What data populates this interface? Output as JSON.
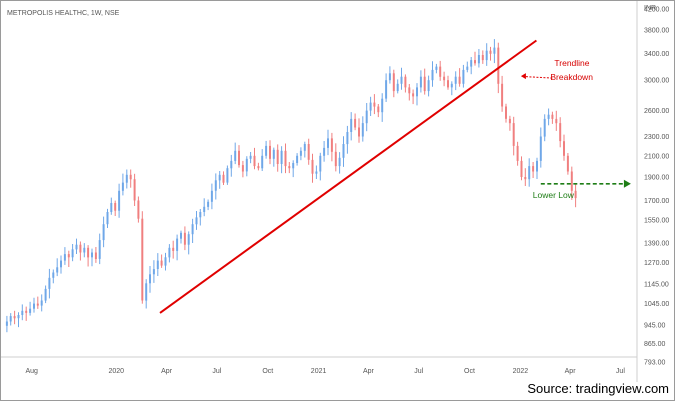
{
  "chart_data": {
    "type": "candlestick",
    "title": "METROPOLIS HEALTHC, 1W, NSE",
    "currency": "INR",
    "y_scale": "log",
    "ylim": [
      793,
      4200
    ],
    "y_ticks": [
      "4200.00",
      "3800.00",
      "3400.00",
      "3000.00",
      "2600.00",
      "2300.00",
      "2100.00",
      "1900.00",
      "1700.00",
      "1550.00",
      "1390.00",
      "1270.00",
      "1145.00",
      "1045.00",
      "945.00",
      "865.00",
      "793.00"
    ],
    "x_ticks": [
      {
        "label": "Aug",
        "date": "2019-08-01"
      },
      {
        "label": "2020",
        "date": "2020-01-01"
      },
      {
        "label": "Apr",
        "date": "2020-04-01"
      },
      {
        "label": "Jul",
        "date": "2020-07-01"
      },
      {
        "label": "Oct",
        "date": "2020-10-01"
      },
      {
        "label": "2021",
        "date": "2021-01-01"
      },
      {
        "label": "Apr",
        "date": "2021-04-01"
      },
      {
        "label": "Jul",
        "date": "2021-07-01"
      },
      {
        "label": "Oct",
        "date": "2021-10-01"
      },
      {
        "label": "2022",
        "date": "2022-01-01"
      },
      {
        "label": "Apr",
        "date": "2022-04-01"
      },
      {
        "label": "Jul",
        "date": "2022-07-01"
      }
    ],
    "x_range": [
      "2019-06-10",
      "2022-07-31"
    ],
    "up_color": "#6fa7e8",
    "down_color": "#f07f7f",
    "trendline": {
      "color": "#e00000",
      "start": {
        "date": "2020-03-20",
        "value": 1000
      },
      "end": {
        "date": "2022-01-30",
        "value": 3620
      }
    },
    "breakdown_arrow": {
      "from": {
        "date": "2022-02-28",
        "value": 3030
      },
      "to": {
        "date": "2022-01-02",
        "value": 3060
      }
    },
    "lower_low_arrow": {
      "color": "#1e7d16",
      "from": {
        "date": "2022-02-07",
        "value": 1840
      },
      "to": {
        "date": "2022-07-20",
        "value": 1840
      }
    },
    "annotations": {
      "trendline_breakdown_line1": "Trendline",
      "trendline_breakdown_line2": "Breakdown",
      "lower_low": "Lower Low"
    },
    "closes": [
      960,
      985,
      975,
      990,
      1010,
      1000,
      1020,
      1045,
      1035,
      1060,
      1120,
      1180,
      1210,
      1240,
      1280,
      1320,
      1300,
      1350,
      1380,
      1330,
      1360,
      1300,
      1330,
      1290,
      1410,
      1520,
      1610,
      1680,
      1620,
      1780,
      1850,
      1920,
      1880,
      1700,
      1560,
      1060,
      1150,
      1200,
      1230,
      1280,
      1250,
      1300,
      1360,
      1340,
      1420,
      1460,
      1380,
      1450,
      1520,
      1570,
      1610,
      1650,
      1690,
      1780,
      1870,
      1920,
      1850,
      1980,
      2050,
      2150,
      2010,
      1950,
      2070,
      2100,
      2000,
      1980,
      2100,
      2200,
      2070,
      2160,
      2020,
      2150,
      2000,
      1980,
      2030,
      2100,
      2150,
      2220,
      2060,
      1930,
      1950,
      2100,
      2180,
      2280,
      2140,
      2000,
      2080,
      2220,
      2350,
      2500,
      2400,
      2300,
      2450,
      2600,
      2700,
      2650,
      2580,
      2750,
      3000,
      3100,
      2850,
      2950,
      3050,
      2900,
      2820,
      2780,
      2900,
      3050,
      2850,
      3000,
      3150,
      3200,
      3050,
      3000,
      2900,
      2950,
      3050,
      2950,
      3150,
      3200,
      3300,
      3250,
      3380,
      3300,
      3450,
      3400,
      3500,
      2950,
      2650,
      2500,
      2450,
      2200,
      2050,
      1900,
      1880,
      2000,
      1950,
      2050,
      2300,
      2500,
      2550,
      2500,
      2450,
      2250,
      2100,
      1950,
      1780,
      1720
    ]
  },
  "source_text": "Source: tradingview.com"
}
